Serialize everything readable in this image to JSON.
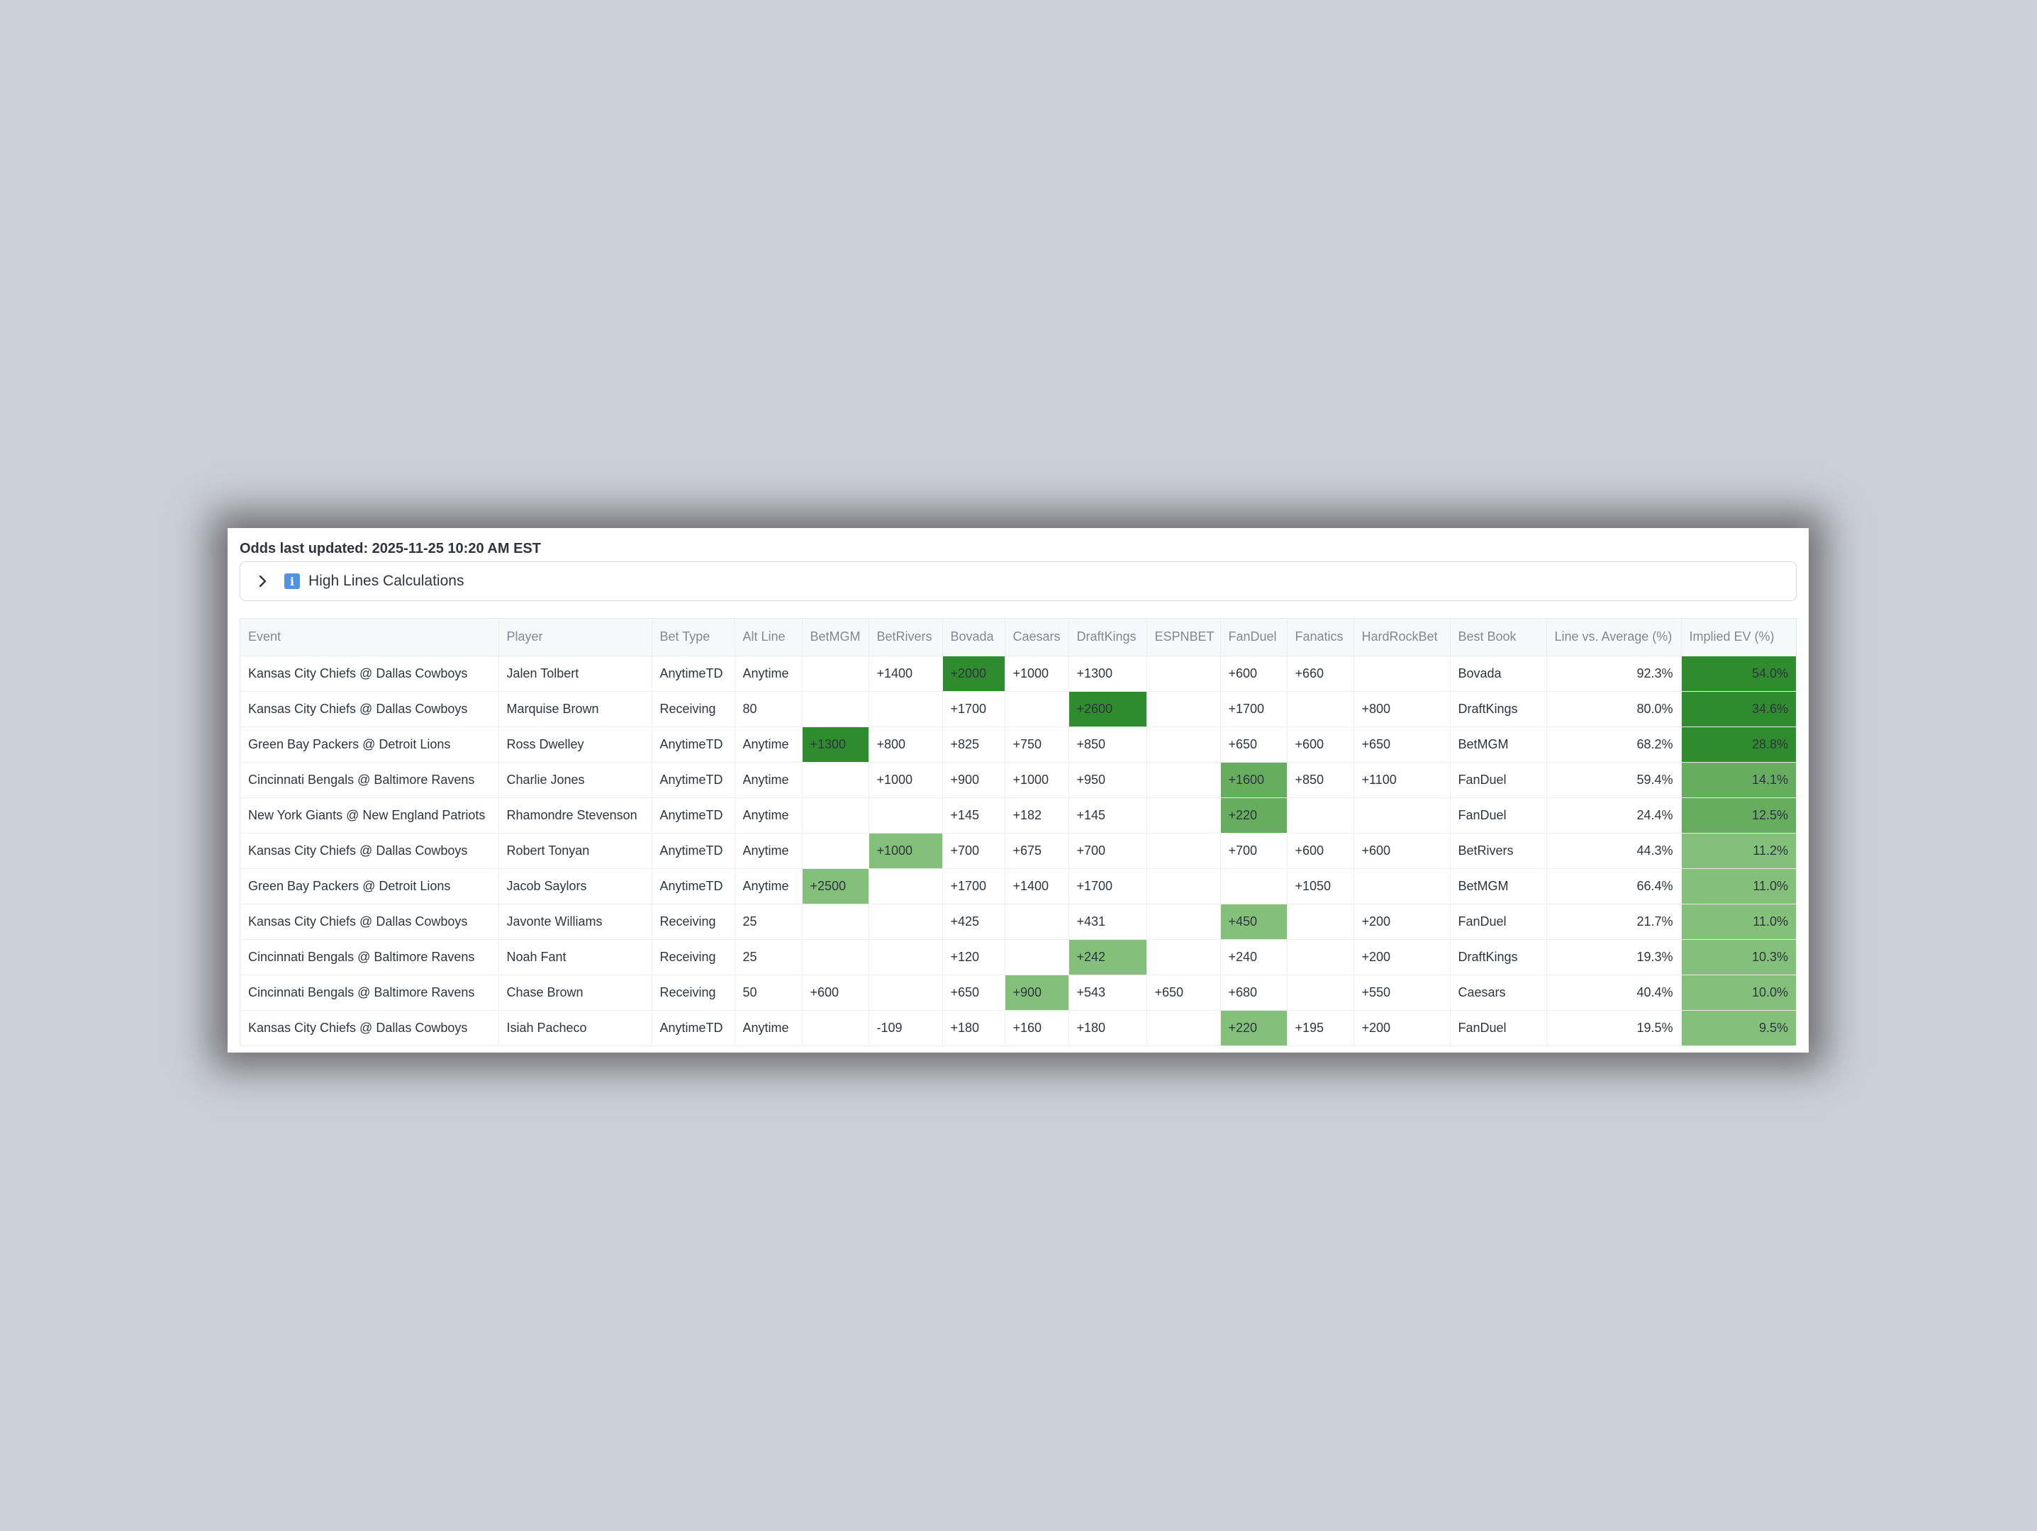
{
  "header": {
    "updated": "Odds last updated: 2025-11-25 10:20 AM EST"
  },
  "expander": {
    "label": "High Lines Calculations",
    "icon": "chevron-right-icon",
    "badge_icon": "info-icon"
  },
  "colors": {
    "strong": "#2e8b2e",
    "medium": "#66ad60",
    "light": "#83c17b"
  },
  "table": {
    "columns": [
      "Event",
      "Player",
      "Bet Type",
      "Alt Line",
      "BetMGM",
      "BetRivers",
      "Bovada",
      "Caesars",
      "DraftKings",
      "ESPNBET",
      "FanDuel",
      "Fanatics",
      "HardRockBet",
      "Best Book",
      "Line vs. Average (%)",
      "Implied EV (%)"
    ],
    "rows": [
      {
        "cells": [
          "Kansas City Chiefs @ Dallas Cowboys",
          "Jalen Tolbert",
          "AnytimeTD",
          "Anytime",
          "",
          "+1400",
          "+2000",
          "+1000",
          "+1300",
          "",
          "+600",
          "+660",
          "",
          "Bovada",
          "92.3%",
          "54.0%"
        ],
        "best": 6,
        "best_tier": "strong",
        "ev_tier": "strong"
      },
      {
        "cells": [
          "Kansas City Chiefs @ Dallas Cowboys",
          "Marquise Brown",
          "Receiving",
          "80",
          "",
          "",
          "+1700",
          "",
          "+2600",
          "",
          "+1700",
          "",
          "+800",
          "DraftKings",
          "80.0%",
          "34.6%"
        ],
        "best": 8,
        "best_tier": "strong",
        "ev_tier": "strong"
      },
      {
        "cells": [
          "Green Bay Packers @ Detroit Lions",
          "Ross Dwelley",
          "AnytimeTD",
          "Anytime",
          "+1300",
          "+800",
          "+825",
          "+750",
          "+850",
          "",
          "+650",
          "+600",
          "+650",
          "BetMGM",
          "68.2%",
          "28.8%"
        ],
        "best": 4,
        "best_tier": "strong",
        "ev_tier": "strong"
      },
      {
        "cells": [
          "Cincinnati Bengals @ Baltimore Ravens",
          "Charlie Jones",
          "AnytimeTD",
          "Anytime",
          "",
          "+1000",
          "+900",
          "+1000",
          "+950",
          "",
          "+1600",
          "+850",
          "+1100",
          "FanDuel",
          "59.4%",
          "14.1%"
        ],
        "best": 10,
        "best_tier": "medium",
        "ev_tier": "medium"
      },
      {
        "cells": [
          "New York Giants @ New England Patriots",
          "Rhamondre Stevenson",
          "AnytimeTD",
          "Anytime",
          "",
          "",
          "+145",
          "+182",
          "+145",
          "",
          "+220",
          "",
          "",
          "FanDuel",
          "24.4%",
          "12.5%"
        ],
        "best": 10,
        "best_tier": "medium",
        "ev_tier": "medium"
      },
      {
        "cells": [
          "Kansas City Chiefs @ Dallas Cowboys",
          "Robert Tonyan",
          "AnytimeTD",
          "Anytime",
          "",
          "+1000",
          "+700",
          "+675",
          "+700",
          "",
          "+700",
          "+600",
          "+600",
          "BetRivers",
          "44.3%",
          "11.2%"
        ],
        "best": 5,
        "best_tier": "light",
        "ev_tier": "light"
      },
      {
        "cells": [
          "Green Bay Packers @ Detroit Lions",
          "Jacob Saylors",
          "AnytimeTD",
          "Anytime",
          "+2500",
          "",
          "+1700",
          "+1400",
          "+1700",
          "",
          "",
          "+1050",
          "",
          "BetMGM",
          "66.4%",
          "11.0%"
        ],
        "best": 4,
        "best_tier": "light",
        "ev_tier": "light"
      },
      {
        "cells": [
          "Kansas City Chiefs @ Dallas Cowboys",
          "Javonte Williams",
          "Receiving",
          "25",
          "",
          "",
          "+425",
          "",
          "+431",
          "",
          "+450",
          "",
          "+200",
          "FanDuel",
          "21.7%",
          "11.0%"
        ],
        "best": 10,
        "best_tier": "light",
        "ev_tier": "light"
      },
      {
        "cells": [
          "Cincinnati Bengals @ Baltimore Ravens",
          "Noah Fant",
          "Receiving",
          "25",
          "",
          "",
          "+120",
          "",
          "+242",
          "",
          "+240",
          "",
          "+200",
          "DraftKings",
          "19.3%",
          "10.3%"
        ],
        "best": 8,
        "best_tier": "light",
        "ev_tier": "light"
      },
      {
        "cells": [
          "Cincinnati Bengals @ Baltimore Ravens",
          "Chase Brown",
          "Receiving",
          "50",
          "+600",
          "",
          "+650",
          "+900",
          "+543",
          "+650",
          "+680",
          "",
          "+550",
          "Caesars",
          "40.4%",
          "10.0%"
        ],
        "best": 7,
        "best_tier": "light",
        "ev_tier": "light"
      },
      {
        "cells": [
          "Kansas City Chiefs @ Dallas Cowboys",
          "Isiah Pacheco",
          "AnytimeTD",
          "Anytime",
          "",
          "-109",
          "+180",
          "+160",
          "+180",
          "",
          "+220",
          "+195",
          "+200",
          "FanDuel",
          "19.5%",
          "9.5%"
        ],
        "best": 10,
        "best_tier": "light",
        "ev_tier": "light"
      }
    ]
  }
}
